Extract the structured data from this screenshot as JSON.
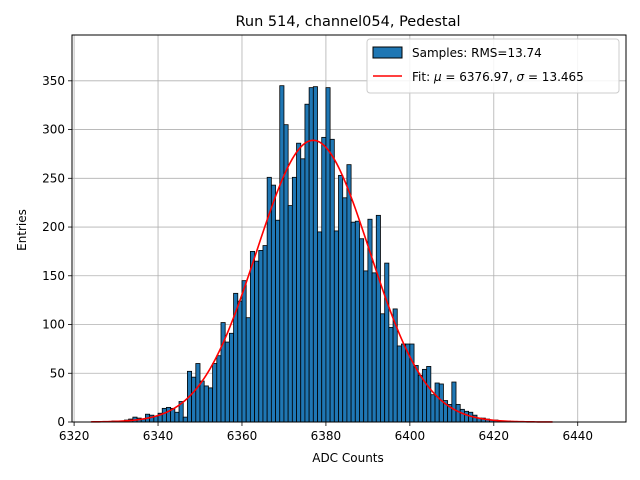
{
  "chart_data": {
    "type": "bar",
    "title": "Run 514, channel054, Pedestal",
    "xlabel": "ADC Counts",
    "ylabel": "Entries",
    "xlim": [
      6319.5,
      6451.5
    ],
    "ylim": [
      0,
      397
    ],
    "x_ticks": [
      6320,
      6340,
      6360,
      6380,
      6400,
      6420,
      6440
    ],
    "y_ticks": [
      0,
      50,
      100,
      150,
      200,
      250,
      300,
      350
    ],
    "grid": true,
    "legend_placement": "top-right",
    "bin_width": 1,
    "bin_start": 6329,
    "bin_values": [
      1,
      1,
      1,
      2,
      3,
      5,
      4,
      3,
      8,
      7,
      6,
      9,
      14,
      15,
      14,
      10,
      21,
      5,
      52,
      46,
      60,
      42,
      37,
      35,
      60,
      68,
      102,
      82,
      91,
      132,
      124,
      145,
      107,
      175,
      165,
      176,
      181,
      251,
      243,
      207,
      345,
      305,
      222,
      251,
      286,
      270,
      326,
      343,
      344,
      195,
      292,
      343,
      290,
      196,
      253,
      230,
      264,
      205,
      206,
      188,
      155,
      208,
      153,
      212,
      111,
      163,
      97,
      116,
      78,
      80,
      80,
      80,
      58,
      48,
      54,
      57,
      28,
      40,
      39,
      22,
      18,
      41,
      18,
      13,
      11,
      10,
      7,
      4,
      4,
      3,
      2,
      2,
      1,
      1,
      1
    ],
    "series": [
      {
        "name": "Samples: RMS=13.74",
        "kind": "histogram",
        "color": "#1f77b4",
        "edge_color": "#000000"
      },
      {
        "name_prefix": "Fit: ",
        "name_mu": "μ",
        "name_middle": " = 6376.97, ",
        "name_sigma": "σ",
        "name_suffix": " = 13.465",
        "kind": "gaussian-fit",
        "color": "#ff0000",
        "mu": 6376.97,
        "sigma": 13.465,
        "amplitude": 289,
        "x_range": [
          6324,
          6434
        ]
      }
    ]
  }
}
